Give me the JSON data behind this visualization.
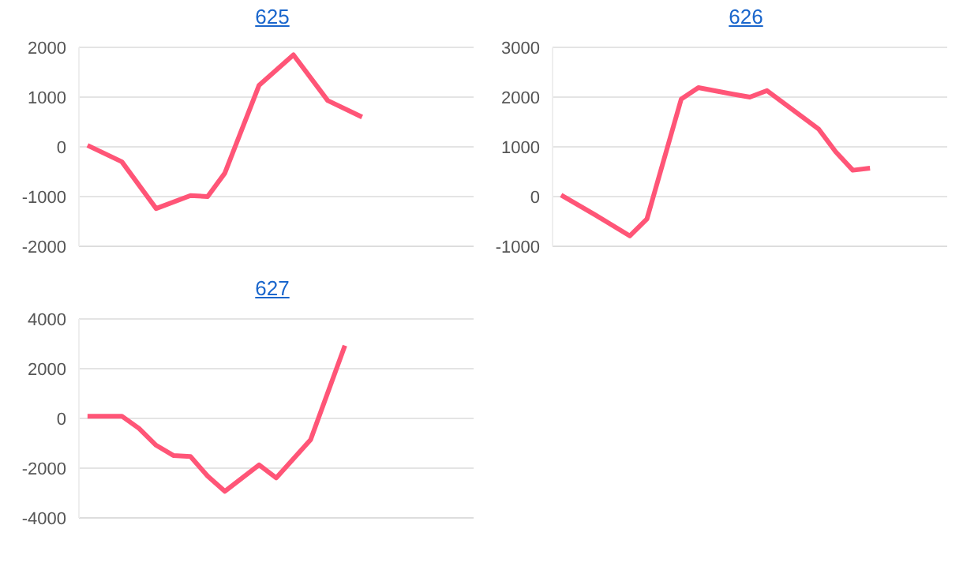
{
  "chart_data": [
    {
      "type": "line",
      "title": "625",
      "categories": [
        null,
        null,
        null,
        null,
        null,
        null,
        null,
        null,
        null,
        null,
        null,
        null,
        null,
        null,
        null,
        null,
        null,
        null,
        null,
        null,
        null,
        null,
        null
      ],
      "series": [
        {
          "color": "#ff5577",
          "values": [
            30,
            null,
            -300,
            null,
            -1240,
            null,
            -980,
            -1000,
            -530,
            null,
            1240,
            null,
            1850,
            null,
            930,
            null,
            600,
            null,
            null,
            null,
            null,
            null,
            null
          ]
        }
      ],
      "ylim": [
        -2000,
        2000
      ],
      "yticks": [
        -2000,
        -1000,
        0,
        1000,
        2000
      ],
      "grid": "y",
      "tick_labels": "y",
      "marker": "none",
      "line_style": "solid",
      "legend": false
    },
    {
      "type": "line",
      "title": "626",
      "categories": [
        null,
        null,
        null,
        null,
        null,
        null,
        null,
        null,
        null,
        null,
        null,
        null,
        null,
        null,
        null,
        null,
        null,
        null,
        null,
        null,
        null,
        null,
        null
      ],
      "series": [
        {
          "color": "#ff5577",
          "values": [
            30,
            null,
            -370,
            null,
            -790,
            -450,
            null,
            1960,
            2190,
            null,
            2060,
            2000,
            2130,
            null,
            null,
            1360,
            900,
            530,
            570,
            null,
            null,
            null,
            null
          ]
        }
      ],
      "ylim": [
        -1000,
        3000
      ],
      "yticks": [
        -1000,
        0,
        1000,
        2000,
        3000
      ],
      "grid": "y",
      "tick_labels": "y",
      "marker": "none",
      "line_style": "solid",
      "legend": false
    },
    {
      "type": "line",
      "title": "627",
      "categories": [
        null,
        null,
        null,
        null,
        null,
        null,
        null,
        null,
        null,
        null,
        null,
        null,
        null,
        null,
        null,
        null,
        null,
        null,
        null,
        null,
        null,
        null,
        null
      ],
      "series": [
        {
          "color": "#ff5577",
          "values": [
            90,
            null,
            90,
            -400,
            -1080,
            -1490,
            -1530,
            -2320,
            -2930,
            null,
            -1870,
            -2390,
            null,
            -860,
            null,
            2930,
            null,
            null,
            null,
            null,
            null,
            null,
            null
          ]
        }
      ],
      "ylim": [
        -4000,
        4000
      ],
      "yticks": [
        -4000,
        -2000,
        0,
        2000,
        4000
      ],
      "grid": "y",
      "tick_labels": "y",
      "marker": "none",
      "line_style": "solid",
      "legend": false
    }
  ]
}
